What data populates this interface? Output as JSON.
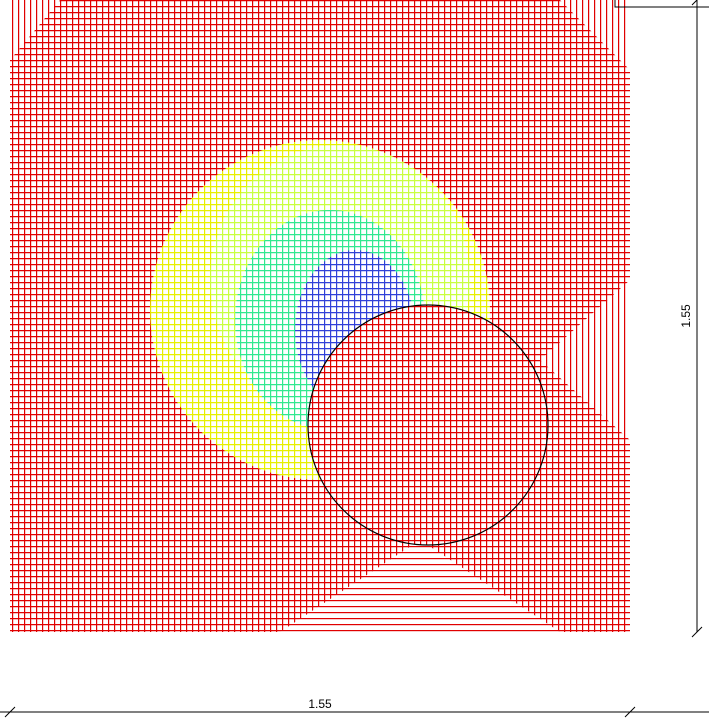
{
  "dimensions": {
    "height": {
      "label": "1.55"
    },
    "width": {
      "label": "1.55"
    }
  }
}
